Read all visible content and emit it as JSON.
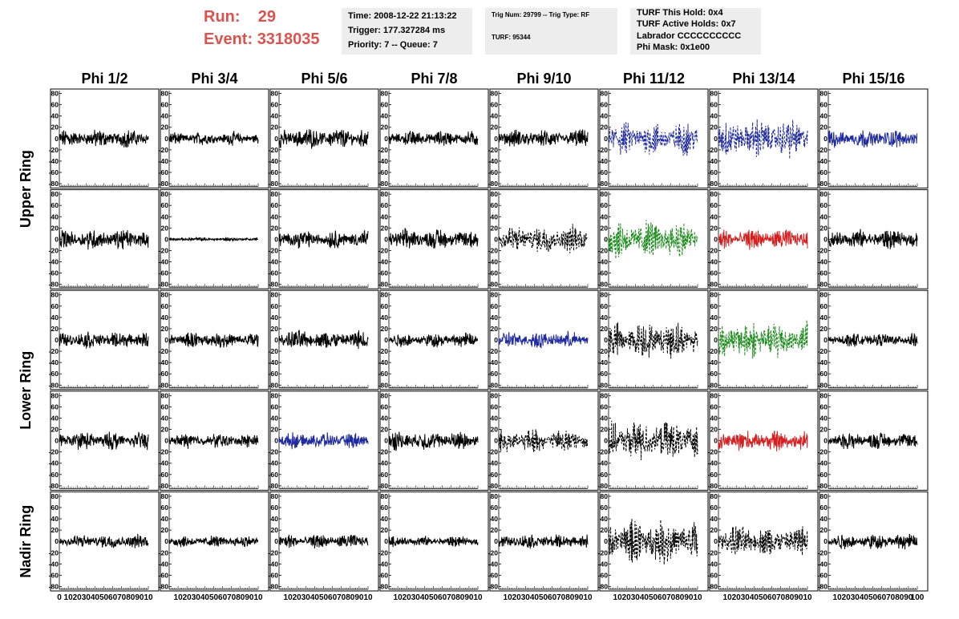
{
  "run_info": {
    "run_label": "Run:",
    "run_value": "29",
    "event_label": "Event:",
    "event_value": "3318035",
    "color": "#d9534f"
  },
  "time_info": {
    "time": "Time: 2008-12-22 21:13:22",
    "trigger": "Trigger: 177.327284 ms",
    "priority": "Priority: 7 -- Queue: 7"
  },
  "trig_info": {
    "trig": "Trig Num: 29799 -- Trig Type: RF",
    "turf": "TURF: 95344"
  },
  "turf_info": {
    "this_hold": "TURF This Hold: 0x4",
    "active_holds": "TURF Active Holds: 0x7",
    "labrador": "Labrador CCCCCCCCCC",
    "phi_mask": "Phi Mask: 0x1e00"
  },
  "chart_data": {
    "type": "line",
    "columns": [
      "Phi 1/2",
      "Phi 3/4",
      "Phi 5/6",
      "Phi 7/8",
      "Phi 9/10",
      "Phi 11/12",
      "Phi 13/14",
      "Phi 15/16"
    ],
    "row_groups": [
      {
        "label": "Upper Ring",
        "rows": [
          0,
          1
        ]
      },
      {
        "label": "Lower Ring",
        "rows": [
          2,
          3
        ]
      },
      {
        "label": "Nadir Ring",
        "rows": [
          4
        ]
      }
    ],
    "xlim": [
      0,
      100
    ],
    "ylim": [
      -85,
      85
    ],
    "y_ticks": [
      -80,
      -60,
      -40,
      -20,
      0,
      20,
      40,
      60,
      80
    ],
    "y_tick_labels": [
      "-80",
      "-60",
      "-40",
      "-20",
      "0",
      "20",
      "40",
      "60",
      "80"
    ],
    "x_ticks": [
      0,
      10,
      20,
      30,
      40,
      50,
      60,
      70,
      80,
      90,
      100
    ],
    "x_tick_labels_first": [
      "0",
      "10",
      "20",
      "30",
      "40",
      "50",
      "60",
      "70",
      "80",
      "90",
      "10"
    ],
    "x_tick_labels_middle": [
      "",
      "10",
      "20",
      "30",
      "40",
      "50",
      "60",
      "70",
      "80",
      "90",
      "10"
    ],
    "x_tick_labels_last": [
      "",
      "10",
      "20",
      "30",
      "40",
      "50",
      "60",
      "70",
      "80",
      "90",
      "100"
    ],
    "colors": {
      "black": "#000000",
      "blue": "#1f2a9e",
      "green": "#1a8a1a",
      "red": "#d42020"
    },
    "panels": [
      [
        {
          "color": "black",
          "dashed": false,
          "amp": 14
        },
        {
          "color": "black",
          "dashed": false,
          "amp": 10
        },
        {
          "color": "black",
          "dashed": false,
          "amp": 16
        },
        {
          "color": "black",
          "dashed": false,
          "amp": 12
        },
        {
          "color": "black",
          "dashed": false,
          "amp": 14
        },
        {
          "color": "blue",
          "dashed": true,
          "amp": 26
        },
        {
          "color": "blue",
          "dashed": true,
          "amp": 30
        },
        {
          "color": "blue",
          "dashed": false,
          "amp": 14
        }
      ],
      [
        {
          "color": "black",
          "dashed": false,
          "amp": 16
        },
        {
          "color": "black",
          "dashed": false,
          "amp": 3
        },
        {
          "color": "black",
          "dashed": false,
          "amp": 14
        },
        {
          "color": "black",
          "dashed": false,
          "amp": 16
        },
        {
          "color": "black",
          "dashed": true,
          "amp": 22
        },
        {
          "color": "green",
          "dashed": true,
          "amp": 30
        },
        {
          "color": "red",
          "dashed": false,
          "amp": 16
        },
        {
          "color": "black",
          "dashed": false,
          "amp": 15
        }
      ],
      [
        {
          "color": "black",
          "dashed": false,
          "amp": 13
        },
        {
          "color": "black",
          "dashed": false,
          "amp": 12
        },
        {
          "color": "black",
          "dashed": false,
          "amp": 15
        },
        {
          "color": "black",
          "dashed": false,
          "amp": 11
        },
        {
          "color": "blue",
          "dashed": false,
          "amp": 13
        },
        {
          "color": "black",
          "dashed": true,
          "amp": 28
        },
        {
          "color": "green",
          "dashed": true,
          "amp": 30
        },
        {
          "color": "black",
          "dashed": false,
          "amp": 10
        }
      ],
      [
        {
          "color": "black",
          "dashed": false,
          "amp": 14
        },
        {
          "color": "black",
          "dashed": false,
          "amp": 11
        },
        {
          "color": "blue",
          "dashed": false,
          "amp": 12
        },
        {
          "color": "black",
          "dashed": false,
          "amp": 15
        },
        {
          "color": "black",
          "dashed": true,
          "amp": 18
        },
        {
          "color": "black",
          "dashed": true,
          "amp": 30
        },
        {
          "color": "red",
          "dashed": false,
          "amp": 16
        },
        {
          "color": "black",
          "dashed": false,
          "amp": 13
        }
      ],
      [
        {
          "color": "black",
          "dashed": false,
          "amp": 11
        },
        {
          "color": "black",
          "dashed": false,
          "amp": 9
        },
        {
          "color": "black",
          "dashed": false,
          "amp": 11
        },
        {
          "color": "black",
          "dashed": false,
          "amp": 8
        },
        {
          "color": "black",
          "dashed": false,
          "amp": 11
        },
        {
          "color": "black",
          "dashed": true,
          "amp": 34
        },
        {
          "color": "black",
          "dashed": true,
          "amp": 24
        },
        {
          "color": "black",
          "dashed": false,
          "amp": 12
        }
      ]
    ]
  }
}
